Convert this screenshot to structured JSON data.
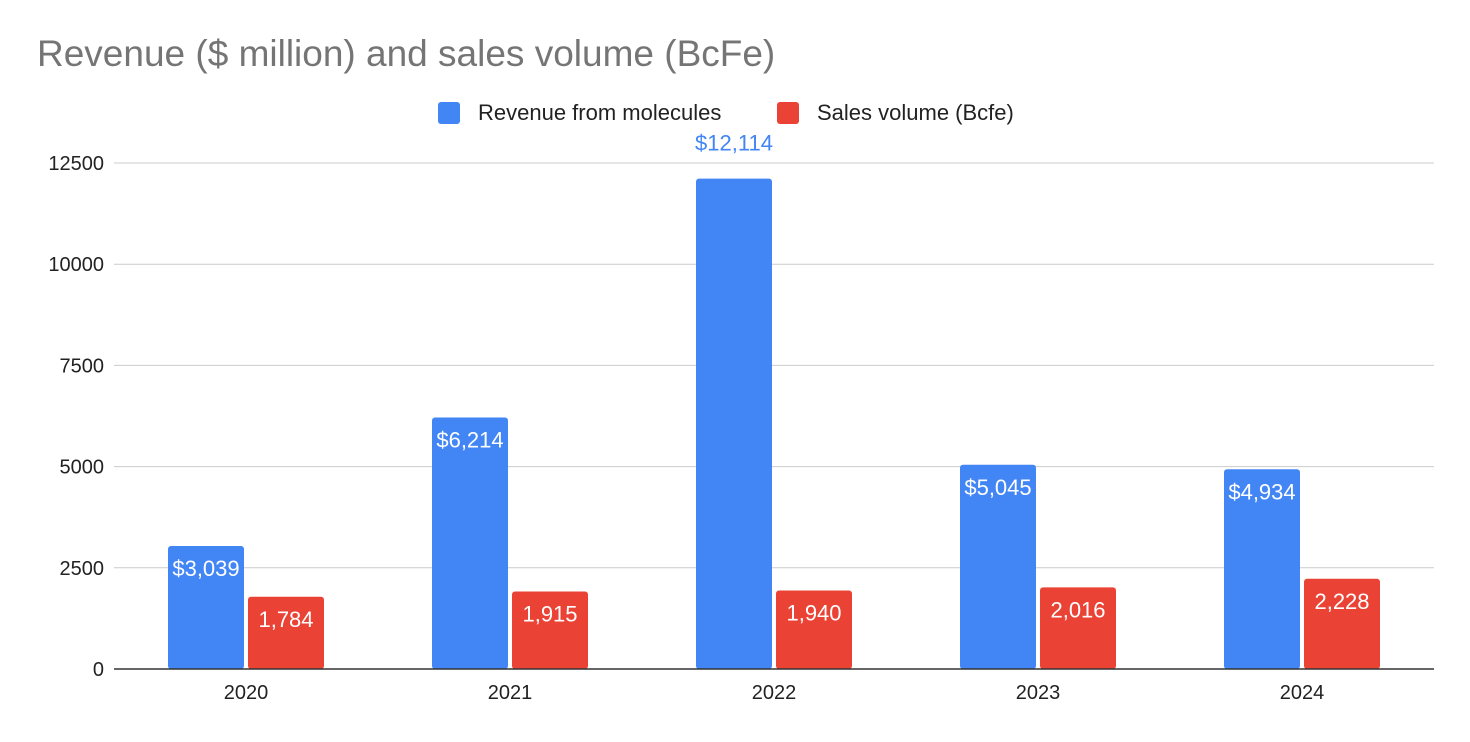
{
  "chart_data": {
    "type": "bar",
    "title": "Revenue ($ million) and sales volume (BcFe)",
    "categories": [
      "2020",
      "2021",
      "2022",
      "2023",
      "2024"
    ],
    "series": [
      {
        "name": "Revenue from molecules",
        "values": [
          3039,
          6214,
          12114,
          5045,
          4934
        ],
        "labels": [
          "$3,039",
          "$6,214",
          "$12,114",
          "$5,045",
          "$4,934"
        ],
        "color": "#4285f4"
      },
      {
        "name": "Sales volume (Bcfe)",
        "values": [
          1784,
          1915,
          1940,
          2016,
          2228
        ],
        "labels": [
          "1,784",
          "1,915",
          "1,940",
          "2,016",
          "2,228"
        ],
        "color": "#ea4335"
      }
    ],
    "yticks": [
      "0",
      "2500",
      "5000",
      "7500",
      "10000",
      "12500"
    ],
    "ylim": [
      0,
      12500
    ],
    "grid": true,
    "legend_position": "top",
    "xlabel": "",
    "ylabel": ""
  }
}
